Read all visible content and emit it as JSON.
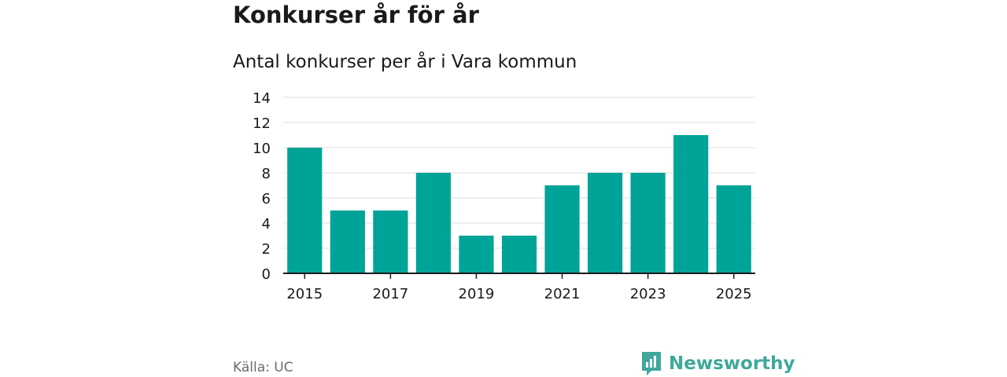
{
  "chart_data": {
    "type": "bar",
    "title": "Konkurser år för år",
    "subtitle": "Antal konkurser per år i Vara kommun",
    "categories": [
      "2015",
      "2016",
      "2017",
      "2018",
      "2019",
      "2020",
      "2021",
      "2022",
      "2023",
      "2024",
      "2025"
    ],
    "values": [
      10,
      5,
      5,
      8,
      3,
      3,
      7,
      8,
      8,
      11,
      7
    ],
    "x_tick_labels": [
      "2015",
      "2017",
      "2019",
      "2021",
      "2023",
      "2025"
    ],
    "y_ticks": [
      0,
      2,
      4,
      6,
      8,
      10,
      12,
      14
    ],
    "ylim": [
      0,
      14
    ],
    "xlabel": "",
    "ylabel": "",
    "grid": true,
    "bar_color": "#00a398"
  },
  "footer": {
    "source": "Källa: UC",
    "brand": "Newsworthy",
    "brand_color": "#3fa89b",
    "brand_icon": "newsworthy-logo-icon"
  }
}
